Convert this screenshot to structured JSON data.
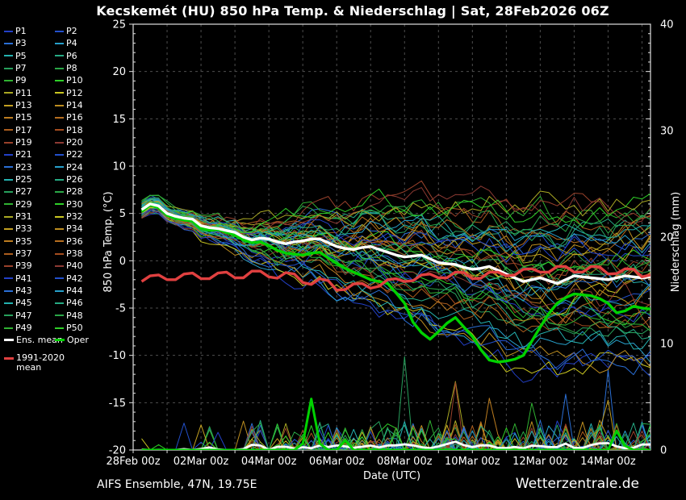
{
  "title": "Kecskemét  (HU)  850 hPa Temp. & Niederschlag | Sat, 28Feb2026 06Z",
  "footer": {
    "model": "AIFS Ensemble, 47N, 19.75E",
    "brand": "Wetterzentrale.de"
  },
  "axes": {
    "left_label": "850 hPa Temp. (°C)",
    "right_label": "Niederschlag (mm)",
    "x_label": "Date (UTC)",
    "left_ticks": [
      25,
      20,
      15,
      10,
      5,
      0,
      -5,
      -10,
      -15,
      -20
    ],
    "right_ticks": [
      40,
      30,
      20,
      10,
      0
    ],
    "x_ticks": [
      "28Feb 00z",
      "02Mar 00z",
      "04Mar 00z",
      "06Mar 00z",
      "08Mar 00z",
      "10Mar 00z",
      "12Mar 00z",
      "14Mar 00z"
    ]
  },
  "legend": {
    "members": [
      "P1",
      "P2",
      "P3",
      "P4",
      "P5",
      "P6",
      "P7",
      "P8",
      "P9",
      "P10",
      "P11",
      "P12",
      "P13",
      "P14",
      "P15",
      "P16",
      "P17",
      "P18",
      "P19",
      "P20",
      "P21",
      "P22",
      "P23",
      "P24",
      "P25",
      "P26",
      "P27",
      "P28",
      "P29",
      "P30",
      "P31",
      "P32",
      "P33",
      "P34",
      "P35",
      "P36",
      "P37",
      "P38",
      "P39",
      "P40",
      "P41",
      "P42",
      "P43",
      "P44",
      "P45",
      "P46",
      "P47",
      "P48",
      "P49",
      "P50"
    ],
    "ens_mean_label": "Ens. mean",
    "oper_label": "Oper",
    "climate_label_line1": "1991-2020",
    "climate_label_line2": "mean"
  },
  "colors": {
    "background": "#000000",
    "frame": "#e0e0e0",
    "grid": "#4d4d4d",
    "text": "#ffffff",
    "ens_mean": "#ffffff",
    "oper": "#00d200",
    "climate": "#e04040",
    "palette": [
      "#2340c8",
      "#2350cc",
      "#2a6fd6",
      "#27a0cb",
      "#24b2b0",
      "#26ab84",
      "#27a05c",
      "#2aa747",
      "#30b232",
      "#2fd028",
      "#a9a823",
      "#c9c621",
      "#c3a021",
      "#bd8e20",
      "#bd7d20",
      "#b66e1f",
      "#ab5d1e",
      "#a54d1f",
      "#99412b",
      "#8d3a33"
    ]
  },
  "chart_data": {
    "type": "line",
    "title": "Kecskemét  (HU)  850 hPa Temp. & Niederschlag | Sat, 28Feb2026 06Z",
    "xlabel": "Date (UTC)",
    "ylabel": "850 hPa Temp. (°C)",
    "y2label": "Niederschlag (mm)",
    "ylim": [
      -20,
      25
    ],
    "y2lim": [
      0,
      40
    ],
    "xlim_days": [
      0,
      15.25
    ],
    "x_tick_labels": [
      "28Feb 00z",
      "02Mar 00z",
      "04Mar 00z",
      "06Mar 00z",
      "08Mar 00z",
      "10Mar 00z",
      "12Mar 00z",
      "14Mar 00z"
    ],
    "x_start_day": 0.25,
    "x_step_days": 0.25,
    "n_points": 61,
    "grid": "dashed, every 5 °C horizontally and every 1 day vertically",
    "legend_position": "left",
    "n_ensemble_members": 50,
    "member_seed": 20260228,
    "spread_keyframes": {
      "days": [
        0,
        1,
        2,
        3,
        4,
        5,
        6,
        7,
        8,
        9,
        10,
        11,
        12,
        13,
        14,
        15.25
      ],
      "halfwidth_degC": [
        0.6,
        0.9,
        1.3,
        1.8,
        2.4,
        3.0,
        3.8,
        4.5,
        5.2,
        5.8,
        6.3,
        6.8,
        7.2,
        7.2,
        7.2,
        7.6
      ]
    },
    "series": [
      {
        "name": "Ens. mean",
        "axis": "temp",
        "color": "#ffffff",
        "values": [
          5.4,
          6.0,
          5.8,
          5.0,
          4.7,
          4.5,
          4.4,
          3.7,
          3.5,
          3.4,
          3.2,
          3.0,
          2.5,
          2.2,
          2.4,
          2.3,
          2.0,
          1.8,
          2.0,
          2.1,
          2.3,
          2.3,
          1.9,
          1.5,
          1.3,
          1.2,
          1.4,
          1.5,
          1.2,
          0.9,
          0.6,
          0.4,
          0.5,
          0.6,
          0.2,
          -0.2,
          -0.3,
          -0.4,
          -0.7,
          -0.9,
          -0.8,
          -0.6,
          -1.0,
          -1.4,
          -1.8,
          -2.2,
          -2.0,
          -1.8,
          -2.1,
          -2.4,
          -2.0,
          -1.6,
          -1.7,
          -1.8,
          -1.9,
          -2.0,
          -1.8,
          -1.6,
          -1.7,
          -1.8,
          -1.7
        ]
      },
      {
        "name": "Oper",
        "axis": "temp",
        "color": "#00d200",
        "values": [
          5.2,
          5.9,
          5.6,
          4.8,
          4.5,
          4.3,
          4.2,
          3.4,
          3.2,
          3.3,
          3.0,
          2.7,
          2.2,
          1.9,
          2.0,
          1.6,
          1.1,
          0.8,
          0.7,
          0.6,
          0.8,
          0.9,
          0.3,
          -0.3,
          -0.8,
          -1.2,
          -1.6,
          -2.0,
          -2.2,
          -2.4,
          -3.4,
          -4.5,
          -6.5,
          -7.6,
          -8.3,
          -7.5,
          -6.6,
          -6.0,
          -7.0,
          -8.0,
          -9.4,
          -10.5,
          -10.7,
          -10.6,
          -10.4,
          -10.0,
          -8.5,
          -7.0,
          -5.6,
          -4.5,
          -3.9,
          -3.5,
          -3.6,
          -3.7,
          -4.0,
          -4.5,
          -5.5,
          -5.3,
          -4.8,
          -5.0,
          -5.1
        ]
      },
      {
        "name": "1991-2020 mean",
        "axis": "temp",
        "color": "#e04040",
        "values": [
          -2.2,
          -1.6,
          -1.5,
          -2.0,
          -2.0,
          -1.4,
          -1.3,
          -1.9,
          -1.9,
          -1.3,
          -1.2,
          -1.8,
          -1.8,
          -1.1,
          -1.1,
          -1.7,
          -1.85,
          -1.25,
          -1.4,
          -2.3,
          -2.5,
          -1.9,
          -2.1,
          -3.1,
          -3.05,
          -2.45,
          -2.4,
          -2.9,
          -2.7,
          -2.0,
          -1.9,
          -2.2,
          -2.1,
          -1.5,
          -1.4,
          -1.8,
          -1.8,
          -1.2,
          -1.25,
          -1.9,
          -1.85,
          -1.2,
          -1.2,
          -1.6,
          -1.5,
          -0.9,
          -0.85,
          -1.2,
          -1.2,
          -0.6,
          -0.6,
          -1.2,
          -1.2,
          -0.6,
          -0.65,
          -1.4,
          -1.35,
          -0.85,
          -0.9,
          -1.7,
          -1.5
        ]
      },
      {
        "name": "Oper precipitation",
        "axis": "precip",
        "color": "#00d200",
        "values": [
          0,
          0,
          0,
          0,
          0,
          0,
          0,
          0,
          0,
          0,
          0,
          0,
          0,
          0,
          0,
          0,
          0,
          0,
          0,
          0.6,
          4.8,
          0.6,
          0,
          0,
          0.9,
          0,
          0,
          0,
          0,
          0,
          0,
          0,
          0,
          0,
          0,
          0,
          0,
          0,
          0,
          0,
          0,
          0,
          0,
          0,
          0,
          0,
          0,
          0,
          0,
          0,
          0,
          0,
          0,
          0,
          0,
          0,
          1.8,
          0.4,
          0,
          0,
          0
        ]
      }
    ]
  }
}
